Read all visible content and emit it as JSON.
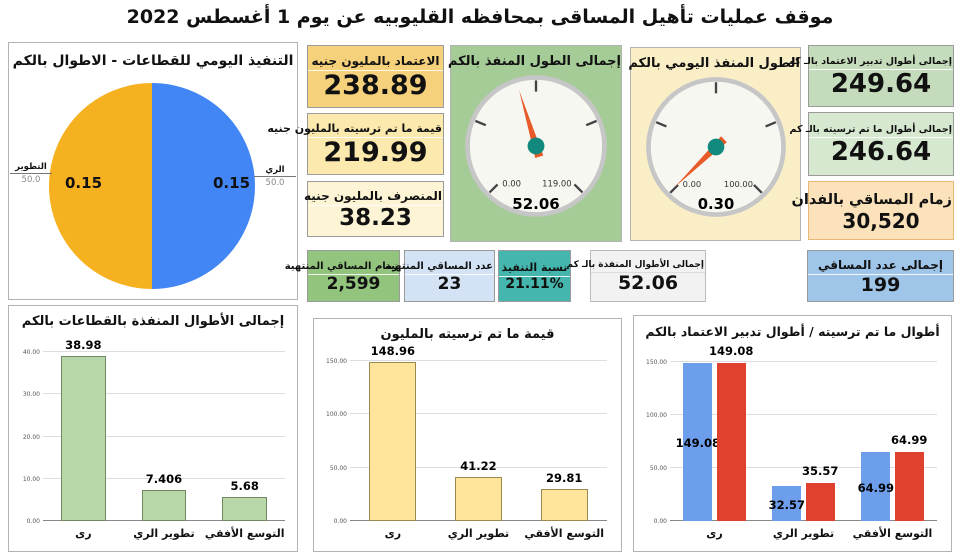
{
  "title": "موقف عمليات تأهيل المساقى بمحافظه القليوبيه عن يوم 1 أغسطس 2022",
  "finance_cards": [
    {
      "label": "الاعتماد بالمليون جنيه",
      "value": "238.89",
      "bg": "#f6d17c"
    },
    {
      "label": "قيمة ما تم ترسيته بالمليون جنيه",
      "value": "219.99",
      "bg": "#fbe9ad"
    },
    {
      "label": "المنصرف بالمليون جنيه",
      "value": "38.23",
      "bg": "#fdf4d5"
    }
  ],
  "length_cards": [
    {
      "label": "إجمالى أطوال تدبير الاعتماد بالـ كم",
      "value": "249.64",
      "bg": "#c5dcbc"
    },
    {
      "label": "إجمالى أطوال ما تم ترسيته بالـ كم",
      "value": "246.64",
      "bg": "#d7e8d0"
    },
    {
      "label": "زمام المساقي بالفدان",
      "value": "30,520",
      "bg": "#fbe2ba"
    }
  ],
  "kpi_cards": [
    {
      "label": "زمام المساقي المنتهية",
      "value": "2,599",
      "bg": "#93c47d"
    },
    {
      "label": "عدد المساقي المنتهية",
      "value": "23",
      "bg": "#d3e2f4"
    },
    {
      "label": "نسبة التنفيذ",
      "value": "21.11%",
      "bg": "#45b6ad"
    },
    {
      "label": "إجمالى الأطوال المنفذة بالـ كم",
      "value": "52.06",
      "bg": "#f2f2f2"
    },
    {
      "label": "إجمالى عدد المساقي",
      "value": "199",
      "bg": "#9fc5e8"
    }
  ],
  "chart_data": [
    {
      "type": "pie",
      "title": "التنفيذ اليومي للقطاعات - الاطوال بالكم",
      "slices": [
        {
          "label": "الري",
          "pct_label": "50.0",
          "value": 0.15,
          "value_label": "0.15",
          "color": "#4285f4"
        },
        {
          "label": "التطوير",
          "pct_label": "50.0",
          "value": 0.15,
          "value_label": "0.15",
          "color": "#f5b120"
        }
      ]
    },
    {
      "type": "gauge",
      "title": "إجمالى الطول المنفذ بالكم",
      "min": 0,
      "max": 119,
      "value": 52.06,
      "min_label": "0.00",
      "max_label": "119.00",
      "value_label": "52.06",
      "panel_bg": "#a5cb97"
    },
    {
      "type": "gauge",
      "title": "الطول المنفذ اليومي بالكم",
      "min": 0,
      "max": 100,
      "value": 0.3,
      "min_label": "0.00",
      "max_label": "100.00",
      "value_label": "0.30",
      "panel_bg": "#faeec6"
    },
    {
      "type": "bar",
      "title": "إجمالى الأطوال المنفذة بالقطاعات بالكم",
      "categories": [
        "رى",
        "تطوير الري",
        "التوسع الأفقي"
      ],
      "values": [
        38.98,
        7.406,
        5.68
      ],
      "value_labels": [
        "38.98",
        "7.406",
        "5.68"
      ],
      "ylim": [
        0,
        40
      ],
      "yticks": [
        "0.00",
        "10.00",
        "20.00",
        "30.00",
        "40.00"
      ],
      "bar_color": "#b7d7a8",
      "bar_border": "#6f8a63",
      "grid": true,
      "legend": "none"
    },
    {
      "type": "bar",
      "title": "قيمة ما تم ترسيته بالمليون",
      "categories": [
        "رى",
        "تطوير الري",
        "التوسع الأفقي"
      ],
      "values": [
        148.96,
        41.22,
        29.81
      ],
      "value_labels": [
        "148.96",
        "41.22",
        "29.81"
      ],
      "ylim": [
        0,
        150
      ],
      "yticks": [
        "0.00",
        "50.00",
        "100.00",
        "150.00"
      ],
      "bar_color": "#ffe59b",
      "bar_border": "#9a8a50",
      "grid": true,
      "legend": "none"
    },
    {
      "type": "bar",
      "title": "أطوال ما تم ترسيته / أطوال تدبير الاعتماد بالكم",
      "categories": [
        "رى",
        "تطوير الري",
        "التوسع الأفقي"
      ],
      "series": [
        {
          "name": "أطوال ما تم ترسيته",
          "color": "#6d9eeb",
          "values": [
            149.08,
            32.57,
            64.99
          ],
          "value_labels": [
            "149.08",
            "32.57",
            "64.99"
          ]
        },
        {
          "name": "أطوال تدبير الاعتماد",
          "color": "#e0402e",
          "values": [
            149.08,
            35.57,
            64.99
          ],
          "value_labels": [
            "149.08",
            "35.57",
            "64.99"
          ]
        }
      ],
      "ylim": [
        0,
        150
      ],
      "yticks": [
        "0.00",
        "50.00",
        "100.00",
        "150.00"
      ],
      "grid": true,
      "legend": "none"
    }
  ]
}
